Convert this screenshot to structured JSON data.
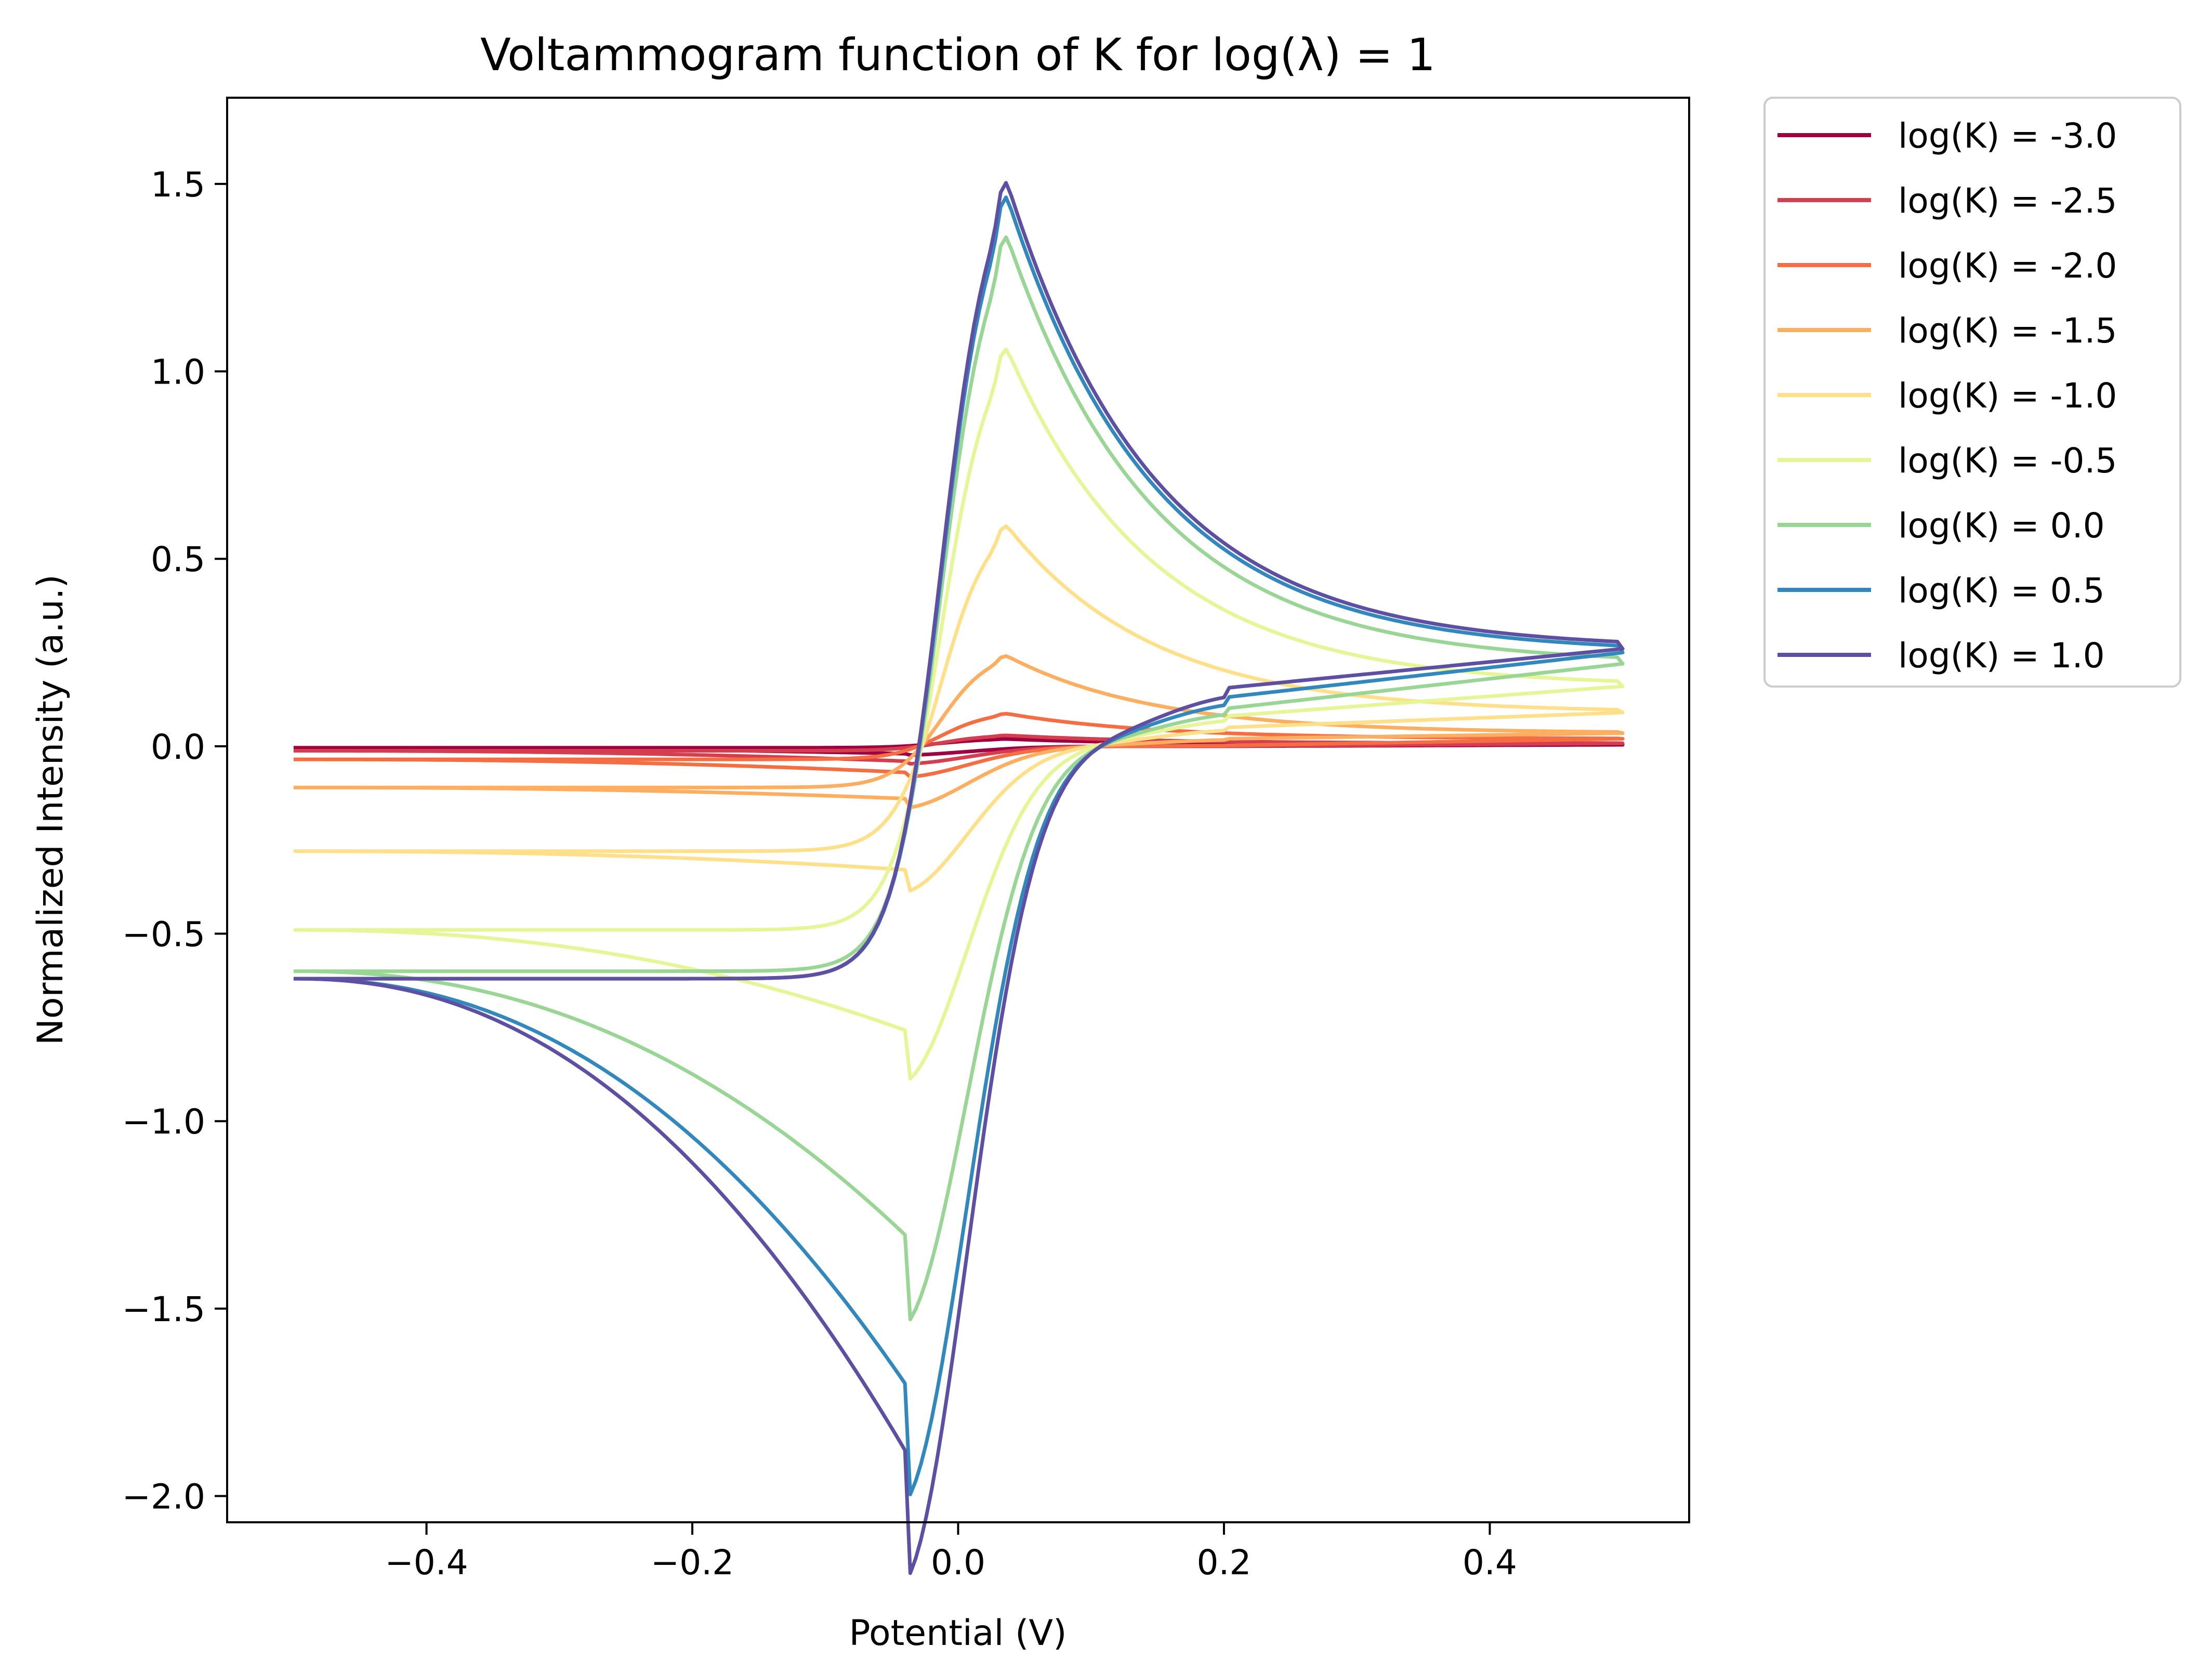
{
  "chart_data": {
    "type": "line",
    "title": "Voltammogram function of K for log(λ) = 1",
    "xlabel": "Potential (V)",
    "ylabel": "Normalized Intensity (a.u.)",
    "xlim": [
      -0.55,
      0.55
    ],
    "ylim": [
      -2.07,
      1.73
    ],
    "xticks": [
      -0.4,
      -0.2,
      0.0,
      0.2,
      0.4
    ],
    "xtick_labels": [
      "−0.4",
      "−0.2",
      "0.0",
      "0.2",
      "0.4"
    ],
    "yticks": [
      -2.0,
      -1.5,
      -1.0,
      -0.5,
      0.0,
      0.5,
      1.0,
      1.5
    ],
    "ytick_labels": [
      "−2.0",
      "−1.5",
      "−1.0",
      "−0.5",
      "0.0",
      "0.5",
      "1.0",
      "1.5"
    ],
    "grid": false,
    "legend_position": "outside-top-right",
    "series": [
      {
        "name": "log(K) = -3.0",
        "color": "#9e0142",
        "ipa": 0.02,
        "ipc": -0.02,
        "iend": 0.004,
        "iturn": 0.0,
        "ilow": -0.004
      },
      {
        "name": "log(K) = -2.5",
        "color": "#d53e4f",
        "ipa": 0.03,
        "ipc": -0.04,
        "iend": 0.008,
        "iturn": 0.0,
        "ilow": -0.012
      },
      {
        "name": "log(K) = -2.0",
        "color": "#f46d43",
        "ipa": 0.09,
        "ipc": -0.07,
        "iend": 0.02,
        "iturn": 0.002,
        "ilow": -0.035
      },
      {
        "name": "log(K) = -1.5",
        "color": "#fdae61",
        "ipa": 0.25,
        "ipc": -0.14,
        "iend": 0.035,
        "iturn": 0.02,
        "ilow": -0.11
      },
      {
        "name": "log(K) = -1.0",
        "color": "#fee08b",
        "ipa": 0.61,
        "ipc": -0.33,
        "iend": 0.09,
        "iturn": 0.05,
        "ilow": -0.28
      },
      {
        "name": "log(K) = -0.5",
        "color": "#e6f598",
        "ipa": 1.1,
        "ipc": -0.76,
        "iend": 0.16,
        "iturn": 0.08,
        "ilow": -0.49
      },
      {
        "name": "log(K) = 0.0",
        "color": "#99d594",
        "ipa": 1.41,
        "ipc": -1.31,
        "iend": 0.22,
        "iturn": 0.1,
        "ilow": -0.6
      },
      {
        "name": "log(K) = 0.5",
        "color": "#3288bd",
        "ipa": 1.52,
        "ipc": -1.71,
        "iend": 0.25,
        "iturn": 0.13,
        "ilow": -0.62
      },
      {
        "name": "log(K) = 1.0",
        "color": "#5e4fa2",
        "ipa": 1.56,
        "ipc": -1.89,
        "iend": 0.26,
        "iturn": 0.155,
        "ilow": -0.62
      }
    ]
  }
}
